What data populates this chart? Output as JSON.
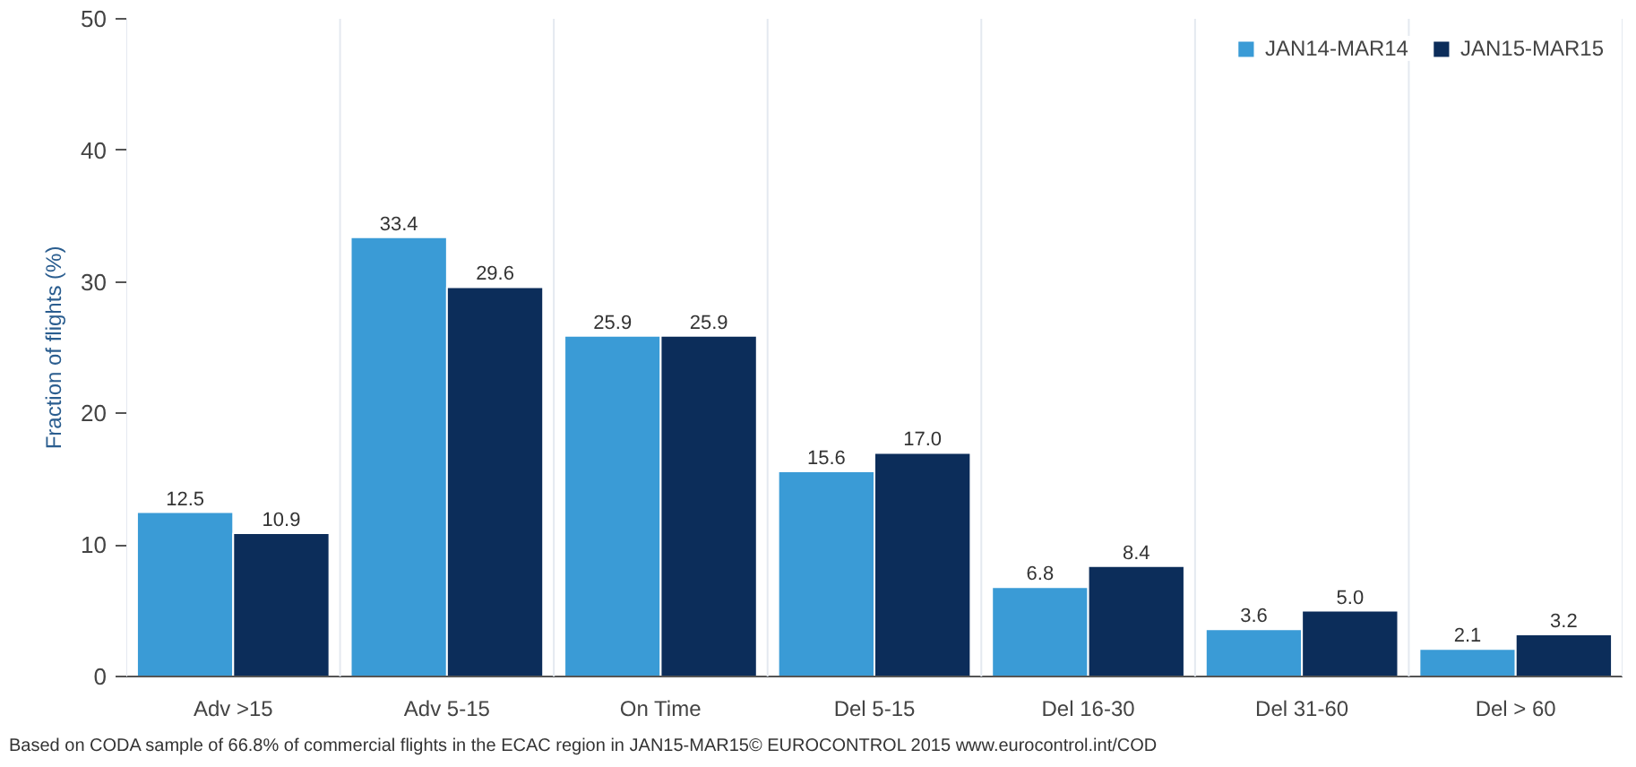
{
  "chart_data": {
    "type": "bar",
    "ylabel": "Fraction of flights (%)",
    "categories": [
      "Adv >15",
      "Adv 5-15",
      "On Time",
      "Del 5-15",
      "Del 16-30",
      "Del 31-60",
      "Del > 60"
    ],
    "series": [
      {
        "name": "JAN14-MAR14",
        "color": "#3a9bd6",
        "values": [
          12.5,
          33.4,
          25.9,
          15.6,
          6.8,
          3.6,
          2.1
        ],
        "value_labels": [
          "12.5",
          "33.4",
          "25.9",
          "15.6",
          "6.8",
          "3.6",
          "2.1"
        ]
      },
      {
        "name": "JAN15-MAR15",
        "color": "#0c2d5a",
        "values": [
          10.9,
          29.6,
          25.9,
          17.0,
          8.4,
          5.0,
          3.2
        ],
        "value_labels": [
          "10.9",
          "29.6",
          "25.9",
          "17.0",
          "8.4",
          "5.0",
          "3.2"
        ]
      }
    ],
    "ylim": [
      0,
      50
    ],
    "yticks": [
      0,
      10,
      20,
      30,
      40,
      50
    ],
    "grid": "x",
    "legend": "top right",
    "annotations": [
      "Based on CODA sample of 66.8% of commercial flights in the ECAC region in JAN15-MAR15",
      "© EUROCONTROL 2015 www.eurocontrol.int/COD"
    ]
  }
}
